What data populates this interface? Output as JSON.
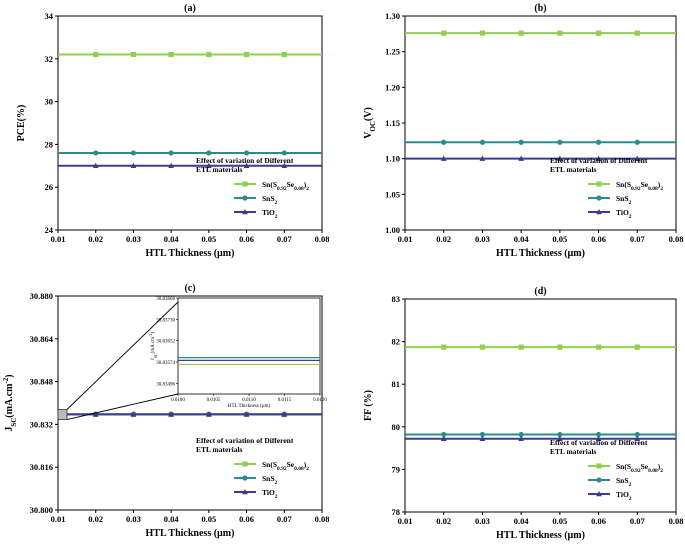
{
  "colors": {
    "sn_s_se": "#8fd14f",
    "sns2": "#2b8c8c",
    "tio2": "#3d3a8f",
    "axis": "#000000"
  },
  "legend": {
    "title_line1": "Effect of variation of Different",
    "title_line2": "ETL materials"
  },
  "chart_data": [
    {
      "id": "a",
      "panel_label": "(a)",
      "type": "line",
      "xlabel": "HTL Thickness (µm)",
      "ylabel": "PCE(%)",
      "xlim": [
        0.01,
        0.08
      ],
      "ylim": [
        24,
        34
      ],
      "xticks": [
        "0.01",
        "0.02",
        "0.03",
        "0.04",
        "0.05",
        "0.06",
        "0.07",
        "0.08"
      ],
      "yticks": [
        "24",
        "26",
        "28",
        "30",
        "32",
        "34"
      ],
      "x": [
        0.02,
        0.03,
        0.04,
        0.05,
        0.06,
        0.07
      ],
      "series": [
        {
          "name": "Sn(S0.92Se0.08)2",
          "values": [
            32.2,
            32.2,
            32.2,
            32.2,
            32.2,
            32.2
          ]
        },
        {
          "name": "SnS2",
          "values": [
            27.6,
            27.6,
            27.6,
            27.6,
            27.6,
            27.6
          ]
        },
        {
          "name": "TiO2",
          "values": [
            27.0,
            27.0,
            27.0,
            27.0,
            27.0,
            27.0
          ]
        }
      ],
      "legend_position": "bottom-right"
    },
    {
      "id": "b",
      "panel_label": "(b)",
      "type": "line",
      "xlabel": "HTL Thickness (µm)",
      "ylabel": "VOC(V)",
      "xlim": [
        0.01,
        0.08
      ],
      "ylim": [
        1.0,
        1.3
      ],
      "xticks": [
        "0.01",
        "0.02",
        "0.03",
        "0.04",
        "0.05",
        "0.06",
        "0.07",
        "0.08"
      ],
      "yticks": [
        "1.00",
        "1.05",
        "1.10",
        "1.15",
        "1.20",
        "1.25",
        "1.30"
      ],
      "x": [
        0.02,
        0.03,
        0.04,
        0.05,
        0.06,
        0.07
      ],
      "series": [
        {
          "name": "Sn(S0.92Se0.08)2",
          "values": [
            1.276,
            1.276,
            1.276,
            1.276,
            1.276,
            1.276
          ]
        },
        {
          "name": "SnS2",
          "values": [
            1.123,
            1.123,
            1.123,
            1.123,
            1.123,
            1.123
          ]
        },
        {
          "name": "TiO2",
          "values": [
            1.1,
            1.1,
            1.1,
            1.1,
            1.1,
            1.1
          ]
        }
      ],
      "legend_position": "bottom-right"
    },
    {
      "id": "c",
      "panel_label": "(c)",
      "type": "line",
      "xlabel": "HTL Thickness (µm)",
      "ylabel": "JSC(mA.cm-2)",
      "xlim": [
        0.01,
        0.08
      ],
      "ylim": [
        30.8,
        30.88
      ],
      "xticks": [
        "0.01",
        "0.02",
        "0.03",
        "0.04",
        "0.05",
        "0.06",
        "0.07",
        "0.08"
      ],
      "yticks": [
        "30.800",
        "30.816",
        "30.832",
        "30.848",
        "30.864",
        "30.880"
      ],
      "x": [
        0.02,
        0.03,
        0.04,
        0.05,
        0.06,
        0.07
      ],
      "series": [
        {
          "name": "Sn(S0.92Se0.08)2",
          "values": [
            30.8357,
            30.8357,
            30.8357,
            30.8357,
            30.8357,
            30.8357
          ]
        },
        {
          "name": "SnS2",
          "values": [
            30.8358,
            30.8358,
            30.8358,
            30.8358,
            30.8358,
            30.8358
          ]
        },
        {
          "name": "TiO2",
          "values": [
            30.83575,
            30.83575,
            30.83575,
            30.83575,
            30.83575,
            30.83575
          ]
        }
      ],
      "legend_position": "bottom-right",
      "inset": {
        "xlabel": "HTL Thickness (µm)",
        "ylabel": "JSC(mA.cm-2)",
        "xlim": [
          0.01,
          0.012
        ],
        "ylim": [
          30.83457,
          30.83808
        ],
        "xticks": [
          "0.0100",
          "0.0105",
          "0.0110",
          "0.0115",
          "0.0120"
        ],
        "yticks": [
          "30.83496",
          "30.83574",
          "30.83652",
          "30.83730",
          "30.83808"
        ],
        "series": [
          {
            "name": "Sn(S0.92Se0.08)2",
            "value": 30.83565
          },
          {
            "name": "SnS2",
            "value": 30.8359
          },
          {
            "name": "TiO2",
            "value": 30.8358
          }
        ]
      }
    },
    {
      "id": "d",
      "panel_label": "(d)",
      "type": "line",
      "xlabel": "HTL Thickness (µm)",
      "ylabel": "FF (%)",
      "xlim": [
        0.01,
        0.08
      ],
      "ylim": [
        78,
        83
      ],
      "xticks": [
        "0.01",
        "0.02",
        "0.03",
        "0.04",
        "0.05",
        "0.06",
        "0.07",
        "0.08"
      ],
      "yticks": [
        "78",
        "79",
        "80",
        "81",
        "82",
        "83"
      ],
      "x": [
        0.02,
        0.03,
        0.04,
        0.05,
        0.06,
        0.07
      ],
      "series": [
        {
          "name": "Sn(S0.92Se0.08)2",
          "values": [
            81.87,
            81.87,
            81.87,
            81.87,
            81.87,
            81.87
          ]
        },
        {
          "name": "SnS2",
          "values": [
            79.82,
            79.82,
            79.82,
            79.82,
            79.82,
            79.82
          ]
        },
        {
          "name": "TiO2",
          "values": [
            79.72,
            79.72,
            79.72,
            79.72,
            79.72,
            79.72
          ]
        }
      ],
      "legend_position": "bottom-right"
    }
  ]
}
